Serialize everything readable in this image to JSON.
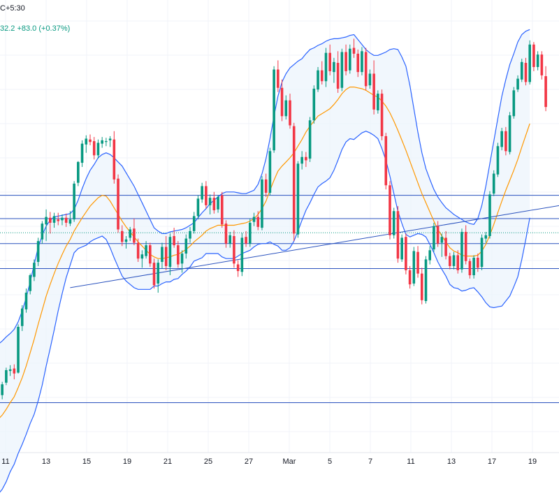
{
  "header": {
    "timezone_label": "C+5:30",
    "change_label": "32.2  +83.0 (+0.37%)"
  },
  "colors": {
    "up": "#089981",
    "down": "#f23645",
    "sma": "#ff9800",
    "bands": "#2962ff",
    "band_fill": "#ecf4fc",
    "levels": "#2a52be",
    "grid": "#f0f3fa",
    "dotted_price": "#089981"
  },
  "chart_data": {
    "type": "candlestick",
    "indicators": [
      "Bollinger Bands",
      "moving average"
    ],
    "x_tick_labels": [
      "11",
      "13",
      "15",
      "19",
      "21",
      "25",
      "27",
      "Mar",
      "5",
      "7",
      "11",
      "13",
      "17",
      "19"
    ],
    "grid": true,
    "candles_ohlc": [
      [
        91.2,
        91.6,
        90.3,
        91.0
      ],
      [
        90.9,
        91.4,
        90.0,
        90.6
      ],
      [
        90.6,
        91.3,
        89.9,
        90.8
      ],
      [
        90.9,
        92.5,
        90.4,
        92.2
      ],
      [
        92.4,
        94.2,
        92.1,
        93.9
      ],
      [
        93.8,
        94.5,
        93.2,
        94.0
      ],
      [
        94.1,
        94.6,
        92.8,
        93.5
      ],
      [
        93.6,
        99.4,
        93.5,
        99.1
      ],
      [
        99.2,
        101.7,
        98.6,
        101.3
      ],
      [
        101.2,
        103.7,
        100.8,
        103.2
      ],
      [
        103.4,
        105.5,
        103.0,
        105.3
      ],
      [
        105.1,
        107.2,
        104.6,
        106.8
      ],
      [
        106.9,
        109.8,
        106.4,
        109.4
      ],
      [
        109.6,
        111.8,
        109.1,
        111.5
      ],
      [
        111.4,
        113.2,
        109.4,
        112.3
      ],
      [
        112.2,
        112.9,
        110.3,
        111.6
      ],
      [
        111.6,
        112.8,
        111.0,
        112.4
      ],
      [
        112.0,
        112.8,
        111.3,
        111.8
      ],
      [
        111.9,
        112.6,
        111.3,
        112.2
      ],
      [
        112.2,
        112.7,
        111.1,
        111.6
      ],
      [
        111.5,
        113.0,
        111.2,
        112.0
      ],
      [
        112.0,
        116.6,
        111.7,
        116.3
      ],
      [
        116.4,
        119.0,
        116.0,
        118.9
      ],
      [
        118.8,
        121.5,
        118.3,
        121.1
      ],
      [
        121.0,
        122.1,
        120.0,
        121.7
      ],
      [
        121.6,
        122.2,
        120.9,
        121.3
      ],
      [
        121.4,
        121.9,
        119.2,
        119.7
      ],
      [
        119.7,
        121.6,
        119.3,
        121.2
      ],
      [
        121.1,
        121.9,
        120.6,
        121.5
      ],
      [
        121.3,
        121.8,
        120.8,
        121.4
      ],
      [
        121.5,
        122.0,
        120.7,
        121.7
      ],
      [
        121.6,
        122.6,
        116.3,
        116.8
      ],
      [
        116.9,
        117.4,
        110.4,
        110.8
      ],
      [
        110.6,
        111.3,
        108.8,
        109.3
      ],
      [
        109.3,
        110.0,
        108.5,
        109.6
      ],
      [
        109.8,
        111.1,
        109.4,
        110.8
      ],
      [
        110.9,
        112.1,
        108.9,
        109.2
      ],
      [
        109.2,
        109.7,
        106.9,
        107.3
      ],
      [
        107.3,
        108.3,
        106.2,
        107.8
      ],
      [
        107.6,
        109.4,
        107.3,
        108.9
      ],
      [
        108.9,
        109.2,
        106.3,
        106.7
      ],
      [
        106.8,
        107.3,
        103.7,
        104.1
      ],
      [
        104.3,
        107.2,
        103.2,
        106.8
      ],
      [
        106.9,
        109.2,
        106.1,
        108.7
      ],
      [
        108.7,
        110.0,
        105.9,
        106.4
      ],
      [
        106.3,
        110.3,
        105.3,
        109.9
      ],
      [
        110.0,
        111.0,
        108.6,
        108.9
      ],
      [
        108.9,
        109.4,
        106.2,
        106.6
      ],
      [
        106.7,
        108.3,
        105.6,
        107.9
      ],
      [
        107.9,
        110.2,
        107.3,
        109.7
      ],
      [
        109.7,
        111.1,
        109.2,
        110.6
      ],
      [
        110.6,
        112.9,
        110.3,
        112.4
      ],
      [
        112.4,
        114.9,
        112.0,
        114.5
      ],
      [
        114.4,
        116.4,
        114.0,
        116.0
      ],
      [
        116.0,
        116.6,
        113.3,
        113.7
      ],
      [
        113.7,
        115.0,
        112.6,
        114.6
      ],
      [
        114.6,
        115.3,
        112.7,
        113.1
      ],
      [
        113.2,
        114.9,
        112.8,
        114.7
      ],
      [
        114.9,
        115.3,
        111.0,
        111.4
      ],
      [
        111.5,
        111.9,
        108.6,
        109.1
      ],
      [
        109.1,
        110.5,
        108.6,
        110.1
      ],
      [
        110.0,
        110.7,
        106.2,
        106.7
      ],
      [
        106.6,
        107.1,
        105.1,
        105.8
      ],
      [
        105.7,
        110.4,
        105.2,
        109.8
      ],
      [
        109.9,
        110.6,
        108.7,
        109.1
      ],
      [
        109.1,
        112.1,
        108.7,
        111.6
      ],
      [
        111.7,
        112.8,
        111.2,
        112.3
      ],
      [
        112.3,
        113.0,
        110.7,
        111.1
      ],
      [
        111.0,
        117.2,
        110.7,
        116.8
      ],
      [
        116.8,
        117.5,
        114.7,
        115.2
      ],
      [
        115.2,
        120.6,
        114.9,
        120.2
      ],
      [
        120.3,
        130.4,
        120.0,
        130.0
      ],
      [
        130.0,
        131.1,
        127.3,
        127.8
      ],
      [
        127.8,
        128.8,
        123.8,
        124.4
      ],
      [
        124.4,
        126.9,
        124.0,
        126.3
      ],
      [
        126.3,
        127.1,
        122.9,
        123.3
      ],
      [
        123.2,
        123.6,
        109.4,
        110.3
      ],
      [
        110.2,
        119.0,
        109.8,
        118.7
      ],
      [
        118.7,
        120.2,
        118.0,
        119.5
      ],
      [
        119.5,
        120.1,
        118.3,
        119.1
      ],
      [
        119.3,
        124.3,
        118.9,
        123.9
      ],
      [
        123.9,
        128.1,
        123.5,
        127.7
      ],
      [
        127.6,
        130.3,
        127.3,
        129.9
      ],
      [
        129.9,
        131.0,
        128.2,
        128.6
      ],
      [
        128.6,
        132.6,
        127.9,
        132.0
      ],
      [
        132.0,
        133.0,
        129.3,
        129.8
      ],
      [
        129.7,
        131.4,
        128.4,
        130.9
      ],
      [
        130.8,
        132.2,
        127.2,
        127.7
      ],
      [
        127.8,
        132.5,
        127.4,
        132.1
      ],
      [
        132.1,
        133.0,
        129.3,
        129.8
      ],
      [
        129.9,
        133.0,
        129.5,
        132.5
      ],
      [
        132.6,
        133.7,
        131.4,
        131.9
      ],
      [
        131.9,
        132.4,
        129.1,
        129.7
      ],
      [
        129.7,
        132.7,
        129.3,
        132.2
      ],
      [
        132.1,
        132.6,
        127.5,
        128.0
      ],
      [
        128.1,
        130.0,
        127.7,
        129.5
      ],
      [
        129.5,
        131.1,
        124.6,
        125.2
      ],
      [
        125.1,
        127.5,
        124.7,
        127.1
      ],
      [
        127.1,
        127.6,
        121.5,
        122.0
      ],
      [
        122.0,
        122.4,
        115.6,
        116.1
      ],
      [
        116.1,
        116.6,
        109.6,
        110.1
      ],
      [
        110.1,
        113.4,
        109.7,
        113.0
      ],
      [
        113.0,
        113.6,
        106.8,
        107.3
      ],
      [
        107.2,
        110.2,
        106.9,
        109.8
      ],
      [
        109.9,
        110.3,
        105.4,
        105.9
      ],
      [
        105.9,
        106.4,
        103.7,
        104.2
      ],
      [
        104.3,
        108.7,
        104.0,
        108.2
      ],
      [
        108.1,
        108.8,
        105.0,
        105.5
      ],
      [
        105.5,
        106.2,
        101.8,
        102.3
      ],
      [
        102.2,
        107.6,
        101.9,
        107.2
      ],
      [
        107.1,
        108.8,
        106.6,
        108.3
      ],
      [
        108.4,
        111.6,
        108.1,
        111.2
      ],
      [
        111.2,
        111.8,
        108.7,
        109.1
      ],
      [
        109.2,
        110.3,
        107.5,
        109.9
      ],
      [
        109.8,
        110.6,
        107.2,
        107.6
      ],
      [
        107.6,
        108.0,
        106.0,
        106.4
      ],
      [
        106.4,
        108.1,
        106.0,
        107.7
      ],
      [
        107.7,
        108.3,
        105.5,
        105.9
      ],
      [
        106.0,
        110.9,
        105.6,
        110.5
      ],
      [
        110.5,
        111.3,
        106.6,
        107.0
      ],
      [
        107.0,
        107.3,
        104.9,
        105.3
      ],
      [
        105.3,
        107.7,
        104.9,
        107.4
      ],
      [
        107.4,
        107.9,
        105.7,
        106.2
      ],
      [
        106.3,
        110.2,
        105.9,
        109.8
      ],
      [
        109.7,
        110.5,
        109.2,
        110.1
      ],
      [
        110.0,
        115.4,
        109.7,
        115.0
      ],
      [
        115.1,
        117.9,
        114.8,
        117.5
      ],
      [
        117.4,
        121.2,
        117.1,
        120.8
      ],
      [
        120.7,
        123.0,
        120.3,
        122.6
      ],
      [
        122.6,
        123.1,
        119.7,
        120.2
      ],
      [
        120.1,
        124.9,
        119.8,
        124.5
      ],
      [
        124.4,
        127.9,
        124.1,
        127.5
      ],
      [
        127.6,
        129.3,
        127.3,
        128.9
      ],
      [
        128.8,
        131.3,
        128.5,
        130.9
      ],
      [
        130.8,
        131.4,
        128.1,
        128.5
      ],
      [
        128.5,
        133.5,
        128.2,
        133.0
      ],
      [
        133.0,
        133.3,
        129.8,
        130.3
      ],
      [
        130.3,
        132.2,
        129.9,
        131.8
      ],
      [
        131.8,
        132.2,
        128.8,
        129.3
      ],
      [
        129.2,
        130.4,
        125.0,
        125.5
      ]
    ],
    "sma": [
      87.1,
      87.6,
      88.0,
      88.5,
      89.2,
      90.0,
      90.7,
      91.8,
      93.0,
      94.4,
      96.0,
      97.6,
      99.4,
      101.1,
      102.8,
      104.2,
      105.5,
      106.7,
      107.8,
      108.8,
      109.6,
      110.6,
      111.4,
      112.2,
      112.9,
      113.6,
      114.1,
      114.6,
      114.9,
      114.8,
      114.2,
      113.4,
      112.6,
      111.8,
      111.1,
      110.5,
      109.9,
      109.3,
      108.8,
      108.3,
      107.8,
      107.5,
      107.3,
      107.3,
      107.4,
      107.5,
      107.7,
      107.8,
      108.1,
      108.4,
      108.8,
      109.3,
      109.7,
      110.1,
      110.6,
      110.9,
      111.1,
      111.3,
      111.3,
      111.3,
      111.3,
      111.3,
      111.4,
      111.5,
      111.6,
      111.8,
      112.1,
      112.6,
      113.3,
      114.2,
      115.5,
      116.7,
      117.8,
      118.4,
      118.9,
      119.4,
      120.0,
      120.8,
      121.6,
      122.5,
      123.2,
      123.8,
      124.4,
      124.7,
      125.0,
      125.3,
      125.8,
      126.4,
      127.1,
      127.6,
      127.9,
      127.9,
      127.8,
      127.7,
      127.5,
      127.2,
      126.9,
      126.7,
      126.2,
      125.6,
      124.8,
      123.8,
      122.7,
      121.5,
      120.3,
      119.0,
      117.7,
      116.4,
      115.1,
      114.0,
      112.9,
      111.8,
      110.8,
      110.0,
      109.3,
      108.6,
      108.2,
      108.0,
      107.7,
      107.6,
      107.6,
      107.6,
      107.7,
      108.2,
      109.0,
      110.1,
      111.4,
      112.8,
      114.2,
      115.5,
      116.7,
      117.9,
      119.2,
      120.7,
      122.1,
      123.5
    ],
    "upper_band": [
      96.1,
      96.5,
      97.0,
      97.4,
      97.9,
      98.3,
      98.8,
      99.7,
      101.0,
      102.6,
      104.5,
      106.6,
      108.6,
      110.1,
      111.2,
      111.9,
      112.3,
      112.4,
      112.5,
      112.6,
      112.7,
      113.2,
      114.3,
      115.7,
      116.9,
      117.9,
      118.6,
      119.4,
      119.8,
      120.0,
      119.8,
      119.4,
      118.9,
      118.4,
      117.6,
      116.8,
      116.0,
      115.0,
      114.0,
      113.0,
      112.0,
      111.0,
      110.6,
      110.3,
      110.3,
      110.5,
      110.6,
      110.7,
      110.8,
      111.0,
      111.3,
      111.6,
      112.2,
      112.8,
      113.3,
      113.9,
      114.3,
      114.7,
      115.1,
      115.3,
      115.3,
      115.3,
      115.2,
      115.1,
      115.1,
      115.3,
      115.5,
      116.2,
      117.5,
      119.3,
      121.7,
      124.4,
      126.8,
      128.5,
      129.5,
      130.2,
      130.6,
      131.0,
      131.3,
      131.9,
      132.4,
      132.6,
      132.9,
      133.1,
      133.4,
      133.6,
      133.7,
      133.7,
      133.8,
      133.9,
      134.1,
      134.2,
      133.6,
      133.0,
      132.4,
      132.0,
      131.7,
      131.7,
      131.9,
      132.1,
      132.4,
      132.5,
      132.4,
      131.5,
      130.4,
      128.1,
      125.3,
      122.5,
      120.0,
      118.1,
      116.8,
      115.6,
      114.7,
      114.0,
      113.4,
      113.0,
      112.6,
      112.3,
      112.0,
      111.7,
      111.5,
      111.4,
      112.1,
      113.7,
      116.0,
      118.7,
      121.4,
      124.1,
      126.8,
      128.8,
      130.6,
      131.9,
      133.3,
      134.2,
      134.6,
      134.8
    ],
    "lower_band": [
      78.1,
      78.7,
      79.0,
      79.6,
      80.5,
      81.7,
      82.6,
      83.9,
      85.0,
      86.2,
      87.5,
      88.6,
      90.2,
      92.1,
      94.4,
      96.5,
      98.7,
      101.0,
      103.1,
      105.0,
      106.5,
      108.0,
      108.5,
      108.7,
      108.9,
      109.3,
      109.6,
      109.8,
      110.0,
      109.6,
      108.6,
      107.4,
      106.3,
      105.2,
      104.6,
      104.2,
      103.8,
      103.6,
      103.6,
      103.6,
      103.6,
      104.0,
      104.0,
      104.3,
      104.5,
      104.5,
      104.8,
      104.9,
      105.4,
      105.8,
      106.3,
      107.0,
      107.2,
      107.4,
      107.9,
      107.9,
      107.9,
      107.9,
      107.5,
      107.3,
      107.3,
      107.3,
      107.6,
      107.9,
      108.1,
      108.3,
      108.7,
      109.0,
      109.1,
      109.1,
      109.3,
      109.0,
      108.8,
      108.3,
      108.3,
      108.6,
      109.4,
      110.6,
      111.9,
      113.1,
      114.0,
      115.0,
      115.9,
      116.3,
      116.6,
      117.0,
      117.9,
      119.1,
      120.4,
      121.3,
      121.7,
      121.6,
      122.0,
      122.4,
      122.6,
      122.4,
      122.1,
      121.7,
      120.5,
      119.1,
      117.2,
      115.1,
      113.0,
      111.5,
      110.2,
      109.9,
      110.1,
      110.3,
      110.2,
      109.9,
      109.0,
      108.0,
      106.9,
      106.0,
      105.2,
      104.2,
      103.8,
      103.7,
      103.4,
      103.5,
      103.7,
      103.8,
      103.3,
      102.7,
      102.0,
      101.5,
      101.4,
      101.5,
      101.6,
      102.2,
      102.8,
      103.9,
      105.1,
      107.2,
      109.6,
      112.2
    ],
    "support_line": {
      "from": [
        20,
        103.8
      ],
      "to": [
        144,
        113.8
      ]
    },
    "horizontal_levels": [
      114.9,
      112.1,
      109.1,
      106.1,
      90.0
    ],
    "dotted_price_level": 110.4,
    "price_range": [
      84.0,
      136.0
    ]
  }
}
